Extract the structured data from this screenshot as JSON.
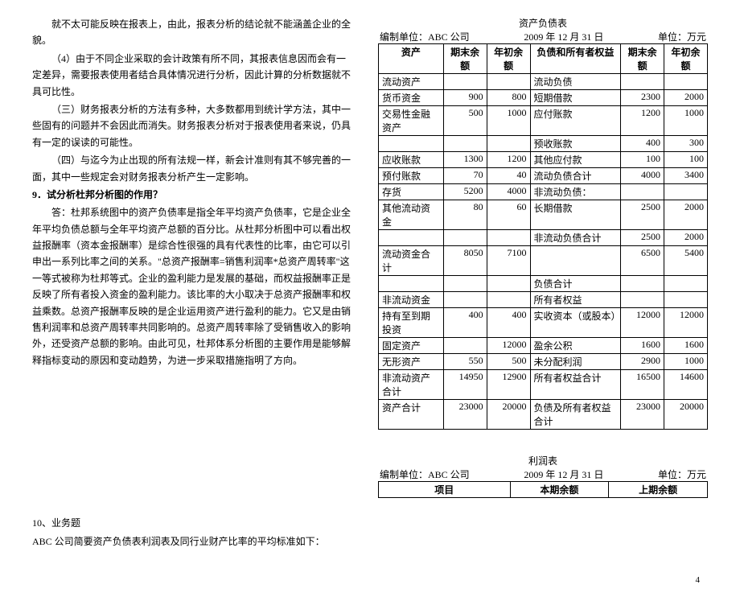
{
  "left": {
    "p1": "就不太可能反映在报表上，由此，报表分析的结论就不能涵盖企业的全貌。",
    "p2": "（4）由于不同企业采取的会计政策有所不同，其报表信息因而会有一定差异，需要报表使用者结合具体情况进行分析，因此计算的分析数据就不具可比性。",
    "p3": "（三）财务报表分析的方法有多种，大多数都用到统计学方法，其中一些固有的问题并不会因此而消失。财务报表分析对于报表使用者来说，仍具有一定的误读的可能性。",
    "p4": "（四）与迄今为止出现的所有法规一样，新会计准则有其不够完善的一面，其中一些规定会对财务报表分析产生一定影响。",
    "q9": "9．试分析杜邦分析图的作用？",
    "ans": "答：杜邦系统图中的资产负债率是指全年平均资产负债率，它是企业全年平均负债总额与全年平均资产总额的百分比。从杜邦分析图中可以看出权益报酬率（资本金报酬率）是综合性很强的具有代表性的比率，由它可以引申出一系列比率之间的关系。\"总资产报酬率=销售利润率*总资产周转率\"这一等式被称为杜邦等式。企业的盈利能力是发展的基础，而权益报酬率正是反映了所有者投入资金的盈利能力。该比率的大小取决于总资产报酬率和权益乘数。总资产报酬率反映的是企业运用资产进行盈利的能力。它又是由销售利润率和总资产周转率共同影响的。总资产周转率除了受销售收入的影响外，还受资产总额的影响。由此可见，杜邦体系分析图的主要作用是能够解释指标变动的原因和变动趋势，为进一步采取措施指明了方向。",
    "q10a": "10、业务题",
    "q10b": "ABC 公司简要资产负债表利润表及同行业财产比率的平均标准如下："
  },
  "bs": {
    "title": "资产负债表",
    "unit_label": "编制单位：ABC 公司",
    "date": "2009 年 12 月 31 日",
    "unit": "单位：万元",
    "h": {
      "assets": "资产",
      "pe": "期末余额",
      "pb": "年初余额",
      "liab": "负债和所有者权益",
      "pe2": "期末余额",
      "pb2": "年初余额"
    },
    "rows": [
      {
        "a": "流动资产",
        "ae": "",
        "ab": "",
        "l": "流动负债",
        "le": "",
        "lb": ""
      },
      {
        "a": "货币资金",
        "ae": "900",
        "ab": "800",
        "l": "短期借款",
        "le": "2300",
        "lb": "2000"
      },
      {
        "a": "交易性金融资产",
        "ae": "500",
        "ab": "1000",
        "l": "应付账款",
        "le": "1200",
        "lb": "1000"
      },
      {
        "a": "",
        "ae": "",
        "ab": "",
        "l": "预收账款",
        "le": "400",
        "lb": "300"
      },
      {
        "a": "应收账款",
        "ae": "1300",
        "ab": "1200",
        "l": "其他应付款",
        "le": "100",
        "lb": "100"
      },
      {
        "a": "预付账款",
        "ae": "70",
        "ab": "40",
        "l": "流动负债合计",
        "le": "4000",
        "lb": "3400"
      },
      {
        "a": "存货",
        "ae": "5200",
        "ab": "4000",
        "l": "非流动负债：",
        "le": "",
        "lb": ""
      },
      {
        "a": "其他流动资金",
        "ae": "80",
        "ab": "60",
        "l": "长期借款",
        "le": "2500",
        "lb": "2000"
      },
      {
        "a": "",
        "ae": "",
        "ab": "",
        "l": "非流动负债合计",
        "le": "2500",
        "lb": "2000"
      },
      {
        "a": "流动资金合计",
        "ae": "8050",
        "ab": "7100",
        "l": "",
        "le": "6500",
        "lb": "5400"
      },
      {
        "a": "",
        "ae": "",
        "ab": "",
        "l": "负债合计",
        "le": "",
        "lb": ""
      },
      {
        "a": "非流动资金",
        "ae": "",
        "ab": "",
        "l": "所有者权益",
        "le": "",
        "lb": ""
      },
      {
        "a": "持有至到期投资",
        "ae": "400",
        "ab": "400",
        "l": "实收资本（或股本）",
        "le": "12000",
        "lb": "12000"
      },
      {
        "a": "固定资产",
        "ae": "",
        "ab": "12000",
        "l": "盈余公积",
        "le": "1600",
        "lb": "1600"
      },
      {
        "a": "无形资产",
        "ae": "550",
        "ab": "500",
        "l": "未分配利润",
        "le": "2900",
        "lb": "1000"
      },
      {
        "a": "非流动资产合计",
        "ae": "14950",
        "ab": "12900",
        "l": "所有者权益合计",
        "le": "16500",
        "lb": "14600"
      },
      {
        "a": "资产合计",
        "ae": "23000",
        "ab": "20000",
        "l": "负债及所有者权益合计",
        "le": "23000",
        "lb": "20000"
      }
    ]
  },
  "is": {
    "title": "利润表",
    "unit_label": "编制单位：ABC 公司",
    "date": "2009 年 12 月 31 日",
    "unit": "单位：万元",
    "h": {
      "item": "项目",
      "cur": "本期余额",
      "prev": "上期余额"
    }
  },
  "page": "4"
}
